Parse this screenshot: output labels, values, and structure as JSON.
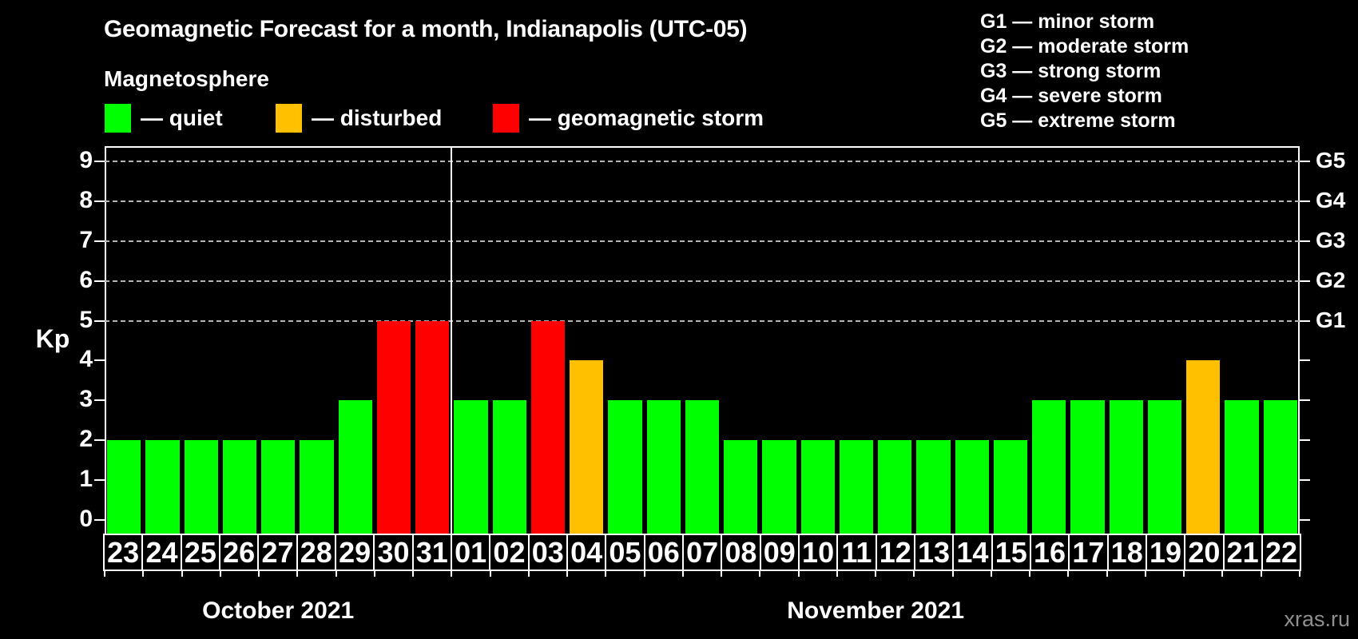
{
  "header": {
    "subtitle": "Magnetosphere",
    "legend": [
      {
        "label": "— quiet",
        "status": "quiet"
      },
      {
        "label": "— disturbed",
        "status": "disturbed"
      },
      {
        "label": "— geomagnetic storm",
        "status": "storm"
      }
    ],
    "g_scale_legend": [
      "G1 — minor storm",
      "G2 — moderate storm",
      "G3 — strong storm",
      "G4 — severe storm",
      "G5 — extreme storm"
    ]
  },
  "colors": {
    "quiet": "#00ff00",
    "disturbed": "#ffc000",
    "storm": "#ff0000",
    "grid": "#b3b3b3",
    "axis": "#ffffff",
    "text": "#ffffff",
    "background": "#000000",
    "watermark": "#8f8f8f"
  },
  "watermark": "xras.ru",
  "chart_data": {
    "type": "bar",
    "title": "Geomagnetic Forecast for a month, Indianapolis (UTC-05)",
    "ylabel": "Kp",
    "ylim": [
      -0.34,
      9.38
    ],
    "yticks": [
      0,
      1,
      2,
      3,
      4,
      5,
      6,
      7,
      8,
      9
    ],
    "grid_levels": [
      {
        "value": 5,
        "label": "G1"
      },
      {
        "value": 6,
        "label": "G2"
      },
      {
        "value": 7,
        "label": "G3"
      },
      {
        "value": 8,
        "label": "G4"
      },
      {
        "value": 9,
        "label": "G5"
      }
    ],
    "legend_note": "grid lines shown only for Kp 5–9 (storm levels G1–G5)",
    "months": [
      {
        "label": "October 2021",
        "bars": [
          {
            "day": "23",
            "value": 2,
            "status": "quiet"
          },
          {
            "day": "24",
            "value": 2,
            "status": "quiet"
          },
          {
            "day": "25",
            "value": 2,
            "status": "quiet"
          },
          {
            "day": "26",
            "value": 2,
            "status": "quiet"
          },
          {
            "day": "27",
            "value": 2,
            "status": "quiet"
          },
          {
            "day": "28",
            "value": 2,
            "status": "quiet"
          },
          {
            "day": "29",
            "value": 3,
            "status": "quiet"
          },
          {
            "day": "30",
            "value": 5,
            "status": "storm"
          },
          {
            "day": "31",
            "value": 5,
            "status": "storm"
          }
        ]
      },
      {
        "label": "November 2021",
        "bars": [
          {
            "day": "01",
            "value": 3,
            "status": "quiet"
          },
          {
            "day": "02",
            "value": 3,
            "status": "quiet"
          },
          {
            "day": "03",
            "value": 5,
            "status": "storm"
          },
          {
            "day": "04",
            "value": 4,
            "status": "disturbed"
          },
          {
            "day": "05",
            "value": 3,
            "status": "quiet"
          },
          {
            "day": "06",
            "value": 3,
            "status": "quiet"
          },
          {
            "day": "07",
            "value": 3,
            "status": "quiet"
          },
          {
            "day": "08",
            "value": 2,
            "status": "quiet"
          },
          {
            "day": "09",
            "value": 2,
            "status": "quiet"
          },
          {
            "day": "10",
            "value": 2,
            "status": "quiet"
          },
          {
            "day": "11",
            "value": 2,
            "status": "quiet"
          },
          {
            "day": "12",
            "value": 2,
            "status": "quiet"
          },
          {
            "day": "13",
            "value": 2,
            "status": "quiet"
          },
          {
            "day": "14",
            "value": 2,
            "status": "quiet"
          },
          {
            "day": "15",
            "value": 2,
            "status": "quiet"
          },
          {
            "day": "16",
            "value": 3,
            "status": "quiet"
          },
          {
            "day": "17",
            "value": 3,
            "status": "quiet"
          },
          {
            "day": "18",
            "value": 3,
            "status": "quiet"
          },
          {
            "day": "19",
            "value": 3,
            "status": "quiet"
          },
          {
            "day": "20",
            "value": 4,
            "status": "disturbed"
          },
          {
            "day": "21",
            "value": 3,
            "status": "quiet"
          },
          {
            "day": "22",
            "value": 3,
            "status": "quiet"
          }
        ]
      }
    ]
  }
}
